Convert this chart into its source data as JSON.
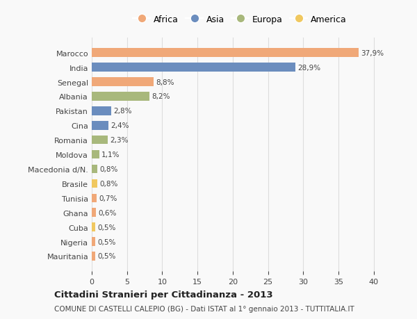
{
  "countries": [
    "Marocco",
    "India",
    "Senegal",
    "Albania",
    "Pakistan",
    "Cina",
    "Romania",
    "Moldova",
    "Macedonia d/N.",
    "Brasile",
    "Tunisia",
    "Ghana",
    "Cuba",
    "Nigeria",
    "Mauritania"
  ],
  "values": [
    37.9,
    28.9,
    8.8,
    8.2,
    2.8,
    2.4,
    2.3,
    1.1,
    0.8,
    0.8,
    0.7,
    0.6,
    0.5,
    0.5,
    0.5
  ],
  "labels": [
    "37,9%",
    "28,9%",
    "8,8%",
    "8,2%",
    "2,8%",
    "2,4%",
    "2,3%",
    "1,1%",
    "0,8%",
    "0,8%",
    "0,7%",
    "0,6%",
    "0,5%",
    "0,5%",
    "0,5%"
  ],
  "continents": [
    "Africa",
    "Asia",
    "Africa",
    "Europa",
    "Asia",
    "Asia",
    "Europa",
    "Europa",
    "Europa",
    "America",
    "Africa",
    "Africa",
    "America",
    "Africa",
    "Africa"
  ],
  "colors": {
    "Africa": "#F0A878",
    "Asia": "#6B8DBE",
    "Europa": "#A8B87C",
    "America": "#F0C860"
  },
  "legend_order": [
    "Africa",
    "Asia",
    "Europa",
    "America"
  ],
  "xlim": [
    0,
    42
  ],
  "xticks": [
    0,
    5,
    10,
    15,
    20,
    25,
    30,
    35,
    40
  ],
  "title": "Cittadini Stranieri per Cittadinanza - 2013",
  "subtitle": "COMUNE DI CASTELLI CALEPIO (BG) - Dati ISTAT al 1° gennaio 2013 - TUTTITALIA.IT",
  "background_color": "#f9f9f9",
  "grid_color": "#dddddd"
}
